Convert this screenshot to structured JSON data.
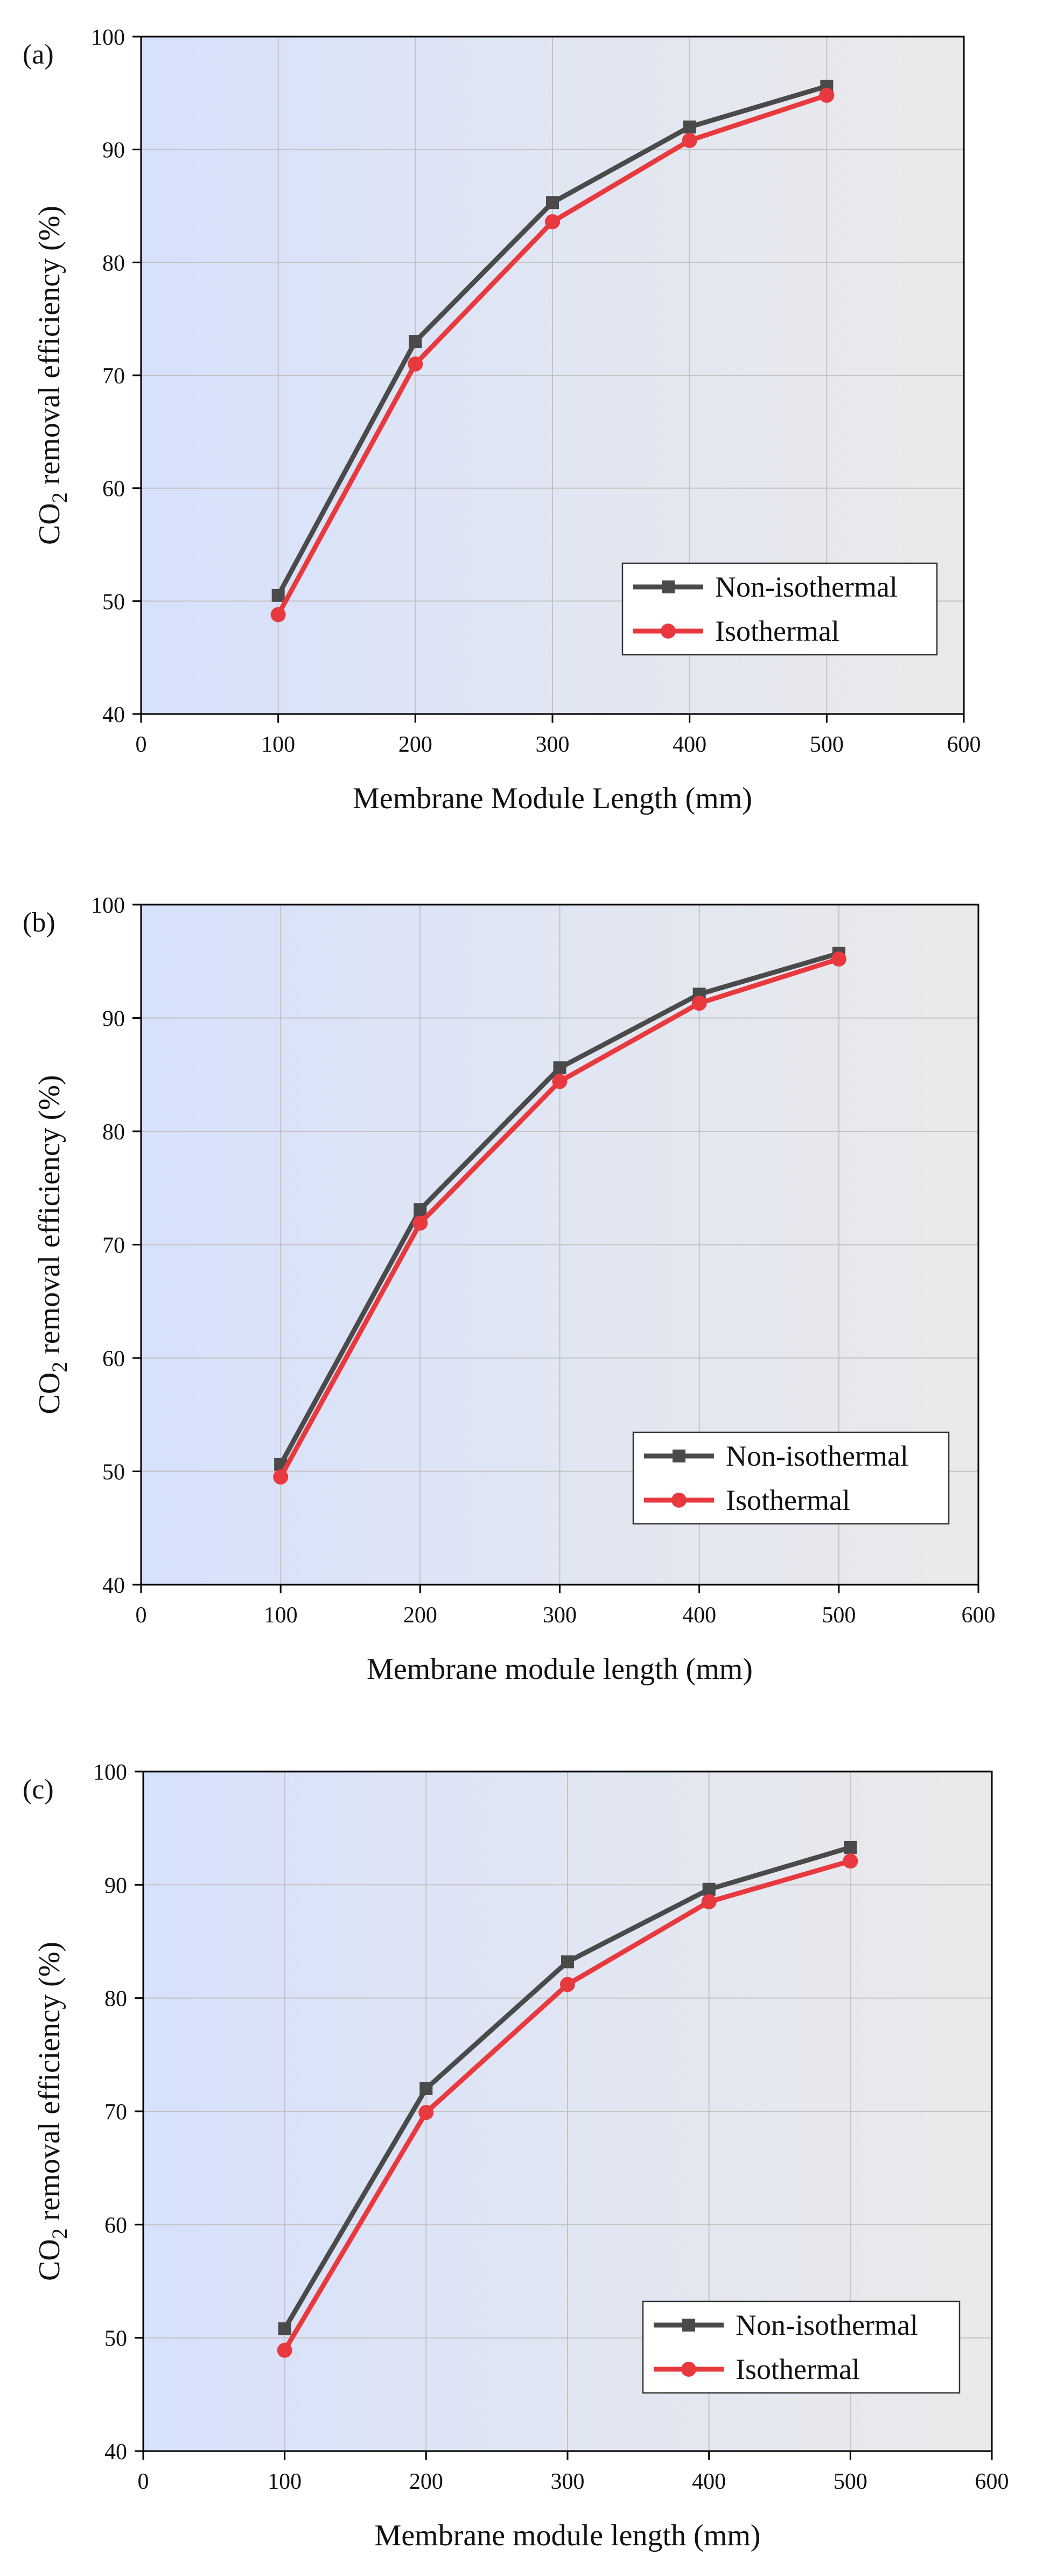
{
  "chart_data": [
    {
      "type": "line",
      "panel_label": "(a)",
      "xlabel": "Membrane Module Length (mm)",
      "ylabel_main": "CO",
      "ylabel_sub": "2",
      "ylabel_rest": " removal efficiency (%)",
      "xlim": [
        0,
        600
      ],
      "ylim": [
        40,
        100
      ],
      "xticks": [
        0,
        100,
        200,
        300,
        400,
        500,
        600
      ],
      "yticks": [
        40,
        50,
        60,
        70,
        80,
        90,
        100
      ],
      "grid": true,
      "legend_position": "lower-right",
      "x": [
        100,
        200,
        300,
        400,
        500
      ],
      "series": [
        {
          "name": "Non-isothermal",
          "values": [
            50.5,
            73.0,
            85.3,
            92.0,
            95.6
          ],
          "color": "#4a4a4a",
          "marker": "square"
        },
        {
          "name": "Isothermal",
          "values": [
            48.8,
            71.0,
            83.6,
            90.8,
            94.8
          ],
          "color": "#e8393f",
          "marker": "circle"
        }
      ]
    },
    {
      "type": "line",
      "panel_label": "(b)",
      "xlabel": "Membrane module length (mm)",
      "ylabel_main": "CO",
      "ylabel_sub": "2",
      "ylabel_rest": " removal efficiency (%)",
      "xlim": [
        0,
        600
      ],
      "ylim": [
        40,
        100
      ],
      "xticks": [
        0,
        100,
        200,
        300,
        400,
        500,
        600
      ],
      "yticks": [
        40,
        50,
        60,
        70,
        80,
        90,
        100
      ],
      "grid": true,
      "legend_position": "lower-right",
      "x": [
        100,
        200,
        300,
        400,
        500
      ],
      "series": [
        {
          "name": "Non-isothermal",
          "values": [
            50.6,
            73.1,
            85.6,
            92.1,
            95.7
          ],
          "color": "#4a4a4a",
          "marker": "square"
        },
        {
          "name": "Isothermal",
          "values": [
            49.5,
            71.9,
            84.4,
            91.3,
            95.2
          ],
          "color": "#e8393f",
          "marker": "circle"
        }
      ]
    },
    {
      "type": "line",
      "panel_label": "(c)",
      "xlabel": "Membrane module length (mm)",
      "ylabel_main": "CO",
      "ylabel_sub": "2",
      "ylabel_rest": " removal efficiency (%)",
      "xlim": [
        0,
        600
      ],
      "ylim": [
        40,
        100
      ],
      "xticks": [
        0,
        100,
        200,
        300,
        400,
        500,
        600
      ],
      "yticks": [
        40,
        50,
        60,
        70,
        80,
        90,
        100
      ],
      "grid": true,
      "legend_position": "lower-right",
      "x": [
        100,
        200,
        300,
        400,
        500
      ],
      "series": [
        {
          "name": "Non-isothermal",
          "values": [
            50.8,
            72.0,
            83.2,
            89.6,
            93.3
          ],
          "color": "#4a4a4a",
          "marker": "square"
        },
        {
          "name": "Isothermal",
          "values": [
            48.9,
            69.9,
            81.2,
            88.5,
            92.1
          ],
          "color": "#e8393f",
          "marker": "circle"
        }
      ]
    }
  ]
}
